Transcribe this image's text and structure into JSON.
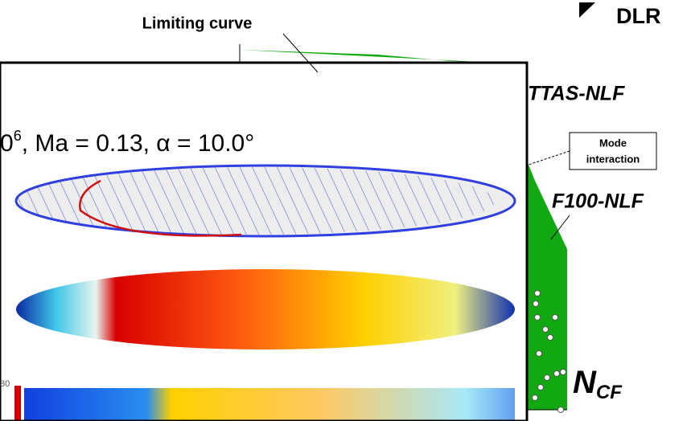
{
  "labels": {
    "limiting_curve": "Limiting curve",
    "logo": "DLR",
    "ttas": "TTAS-NLF",
    "mode_interaction": [
      "Mode",
      "interaction"
    ],
    "f100": "F100-NLF",
    "ncf": {
      "main": "N",
      "sub": "CF"
    }
  },
  "inset": {
    "condition": {
      "prefix": "0",
      "sup": "6",
      "rest": ", Ma = 0.13, α = 10.0°"
    },
    "colorbar_tick": "80"
  }
}
